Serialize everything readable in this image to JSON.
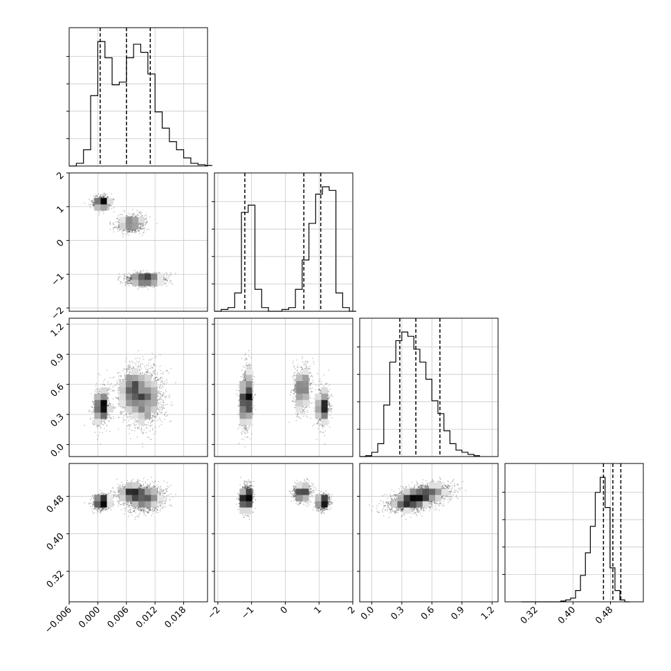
{
  "chart_data": {
    "type": "corner",
    "parameters": [
      {
        "index": 0,
        "range": [
          -0.006,
          0.023
        ],
        "ticks": [
          -0.006,
          0.0,
          0.006,
          0.012,
          0.018
        ],
        "tick_labels": [
          "−0.006",
          "0.000",
          "0.006",
          "0.012",
          "0.018"
        ],
        "quantiles": [
          0.0005,
          0.006,
          0.011
        ]
      },
      {
        "index": 1,
        "range": [
          -2.1,
          2.0
        ],
        "ticks": [
          -2,
          -1,
          0,
          1,
          2
        ],
        "tick_labels": [
          "−2",
          "−1",
          "0",
          "1",
          "2"
        ],
        "quantiles": [
          -1.2,
          0.55,
          1.05
        ]
      },
      {
        "index": 2,
        "range": [
          -0.12,
          1.26
        ],
        "ticks": [
          0.0,
          0.3,
          0.6,
          0.9,
          1.2
        ],
        "tick_labels": [
          "0.0",
          "0.3",
          "0.6",
          "0.9",
          "1.2"
        ],
        "quantiles": [
          0.28,
          0.44,
          0.68
        ]
      },
      {
        "index": 3,
        "range": [
          0.255,
          0.55
        ],
        "ticks": [
          0.32,
          0.4,
          0.48
        ],
        "tick_labels": [
          "0.32",
          "0.40",
          "0.48"
        ],
        "quantiles": [
          0.465,
          0.485,
          0.502
        ]
      }
    ],
    "histograms": [
      {
        "param": 0,
        "edges_start": -0.006,
        "bin_width": 0.0015,
        "counts": [
          0,
          1,
          6,
          26,
          46,
          40,
          30,
          31,
          40,
          45,
          42,
          34,
          20,
          14,
          9,
          6,
          3,
          1,
          0.5,
          0.2
        ]
      },
      {
        "param": 1,
        "edges_start": -2.1,
        "bin_width": 0.2,
        "counts": [
          0,
          0.5,
          1,
          5,
          27,
          29,
          6,
          1,
          0,
          0,
          0.5,
          1,
          6,
          14,
          24,
          32,
          34,
          33,
          5,
          1,
          0
        ]
      },
      {
        "param": 2,
        "edges_start": -0.12,
        "bin_width": 0.06,
        "counts": [
          0,
          0.2,
          1,
          3,
          12,
          22,
          27,
          29,
          28,
          25,
          22,
          18,
          13,
          10,
          6,
          3,
          1.5,
          1,
          0.5,
          0.2
        ]
      },
      {
        "param": 3,
        "edges_start": 0.29,
        "bin_width": 0.0105,
        "counts": [
          0,
          0,
          0,
          0,
          0,
          0,
          0,
          0,
          0.2,
          0.5,
          1,
          3,
          7,
          13,
          20,
          29,
          33,
          25,
          9,
          3,
          0.5,
          0
        ]
      }
    ],
    "modes": [
      {
        "weight": 0.25,
        "mean": [
          0.0008,
          1.12,
          0.37,
          0.468
        ],
        "sd": [
          0.0016,
          0.18,
          0.13,
          0.012
        ]
      },
      {
        "weight": 0.3,
        "mean": [
          0.007,
          0.5,
          0.55,
          0.488
        ],
        "sd": [
          0.0025,
          0.22,
          0.16,
          0.013
        ]
      },
      {
        "weight": 0.45,
        "mean": [
          0.01,
          -1.15,
          0.45,
          0.475
        ],
        "sd": [
          0.0035,
          0.15,
          0.2,
          0.02
        ]
      }
    ]
  }
}
